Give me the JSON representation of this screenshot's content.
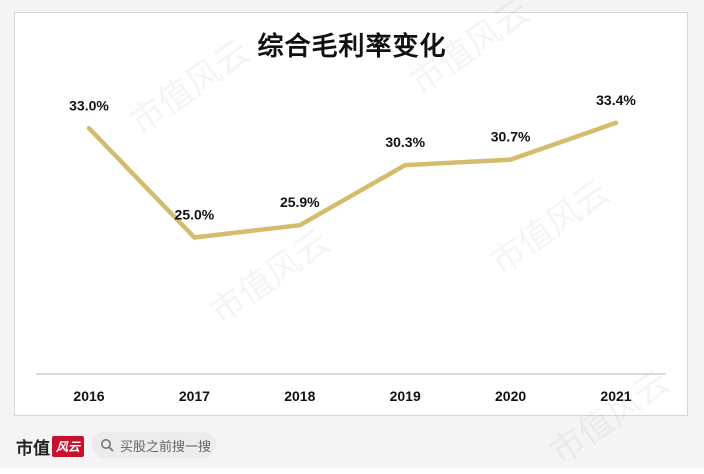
{
  "chart_data": {
    "type": "line",
    "title": "综合毛利率变化",
    "categories": [
      "2016",
      "2017",
      "2018",
      "2019",
      "2020",
      "2021"
    ],
    "series": [
      {
        "values": [
          33.0,
          25.0,
          25.9,
          30.3,
          30.7,
          33.4
        ],
        "labels": [
          "33.0%",
          "25.0%",
          "25.9%",
          "30.3%",
          "30.7%",
          "33.4%"
        ],
        "color": "#d4bc6c"
      }
    ],
    "ylim": [
      15,
      38
    ],
    "grid": false,
    "legend": "none"
  },
  "footer": {
    "brand_text": "市值",
    "brand_badge": "风云",
    "search_placeholder": "买股之前搜一搜"
  },
  "watermark_text": "市值风云",
  "colors": {
    "line": "#d4bc6c",
    "axis": "#cfcfcf",
    "brand_red": "#c8102e"
  }
}
